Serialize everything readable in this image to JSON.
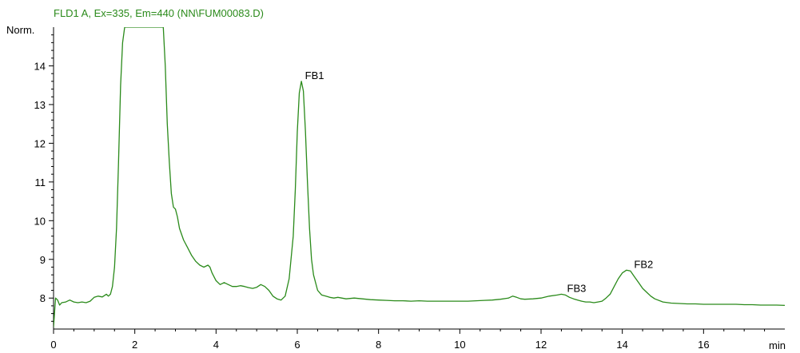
{
  "chart_data": {
    "type": "line",
    "title": "FLD1 A, Ex=335, Em=440 (NN\\FUM00083.D)",
    "ylabel": "Norm.",
    "xlabel": "min",
    "xlim": [
      0,
      18
    ],
    "ylim": [
      7.2,
      15.0
    ],
    "yticks": [
      8,
      9,
      10,
      11,
      12,
      13,
      14
    ],
    "xticks": [
      0,
      2,
      4,
      6,
      8,
      10,
      12,
      14,
      16
    ],
    "line_color": "#2a8a1a",
    "grid": false,
    "series": [
      {
        "x": [
          0.0,
          0.05,
          0.1,
          0.15,
          0.2,
          0.3,
          0.4,
          0.5,
          0.6,
          0.7,
          0.8,
          0.9,
          1.0,
          1.1,
          1.2,
          1.3,
          1.35,
          1.4,
          1.45,
          1.5,
          1.55,
          1.6,
          1.65,
          1.7,
          1.75,
          2.7,
          2.75,
          2.8,
          2.85,
          2.9,
          2.95,
          3.0,
          3.05,
          3.1,
          3.2,
          3.3,
          3.4,
          3.5,
          3.6,
          3.7,
          3.8,
          3.85,
          3.9,
          4.0,
          4.1,
          4.2,
          4.3,
          4.4,
          4.5,
          4.6,
          4.7,
          4.8,
          4.9,
          5.0,
          5.1,
          5.2,
          5.3,
          5.4,
          5.5,
          5.6,
          5.7,
          5.8,
          5.9,
          5.95,
          6.0,
          6.05,
          6.1,
          6.15,
          6.2,
          6.25,
          6.3,
          6.35,
          6.4,
          6.5,
          6.6,
          6.7,
          6.8,
          6.9,
          7.0,
          7.2,
          7.4,
          7.6,
          7.8,
          8.0,
          8.2,
          8.4,
          8.6,
          8.8,
          9.0,
          9.2,
          9.4,
          9.6,
          9.8,
          10.0,
          10.2,
          10.4,
          10.6,
          10.8,
          11.0,
          11.2,
          11.3,
          11.4,
          11.5,
          11.6,
          11.8,
          12.0,
          12.2,
          12.4,
          12.5,
          12.6,
          12.7,
          12.8,
          12.9,
          13.0,
          13.1,
          13.2,
          13.3,
          13.4,
          13.5,
          13.6,
          13.7,
          13.8,
          13.9,
          14.0,
          14.1,
          14.2,
          14.3,
          14.4,
          14.5,
          14.6,
          14.7,
          14.8,
          15.0,
          15.2,
          15.4,
          15.6,
          15.8,
          16.0,
          16.2,
          16.4,
          16.6,
          16.8,
          17.0,
          17.2,
          17.4,
          17.6,
          17.8,
          18.0
        ],
        "y": [
          7.25,
          8.0,
          7.95,
          7.82,
          7.88,
          7.9,
          7.95,
          7.9,
          7.88,
          7.9,
          7.88,
          7.92,
          8.02,
          8.05,
          8.03,
          8.1,
          8.05,
          8.1,
          8.3,
          8.8,
          9.8,
          11.5,
          13.5,
          14.6,
          15.0,
          15.0,
          14.0,
          12.5,
          11.5,
          10.7,
          10.35,
          10.3,
          10.1,
          9.8,
          9.5,
          9.3,
          9.1,
          8.95,
          8.85,
          8.8,
          8.85,
          8.8,
          8.65,
          8.45,
          8.35,
          8.4,
          8.35,
          8.3,
          8.3,
          8.32,
          8.3,
          8.27,
          8.25,
          8.28,
          8.35,
          8.3,
          8.2,
          8.05,
          7.98,
          7.95,
          8.05,
          8.5,
          9.6,
          10.8,
          12.3,
          13.3,
          13.6,
          13.35,
          12.3,
          11.0,
          9.8,
          9.0,
          8.6,
          8.2,
          8.08,
          8.05,
          8.02,
          8.0,
          8.02,
          7.98,
          8.0,
          7.98,
          7.96,
          7.95,
          7.94,
          7.93,
          7.93,
          7.92,
          7.93,
          7.92,
          7.92,
          7.92,
          7.92,
          7.92,
          7.92,
          7.93,
          7.94,
          7.95,
          7.97,
          8.0,
          8.05,
          8.02,
          7.98,
          7.97,
          7.98,
          8.0,
          8.05,
          8.08,
          8.1,
          8.08,
          8.02,
          7.98,
          7.95,
          7.92,
          7.9,
          7.9,
          7.88,
          7.9,
          7.92,
          8.0,
          8.1,
          8.3,
          8.5,
          8.65,
          8.72,
          8.7,
          8.55,
          8.4,
          8.25,
          8.15,
          8.05,
          7.98,
          7.9,
          7.87,
          7.86,
          7.85,
          7.85,
          7.84,
          7.84,
          7.84,
          7.84,
          7.84,
          7.83,
          7.83,
          7.82,
          7.82,
          7.82,
          7.81
        ]
      }
    ],
    "annotations": [
      {
        "label": "FB1",
        "x": 6.15,
        "y": 13.6
      },
      {
        "label": "FB3",
        "x": 12.6,
        "y": 8.1
      },
      {
        "label": "FB2",
        "x": 14.25,
        "y": 8.72
      }
    ]
  }
}
